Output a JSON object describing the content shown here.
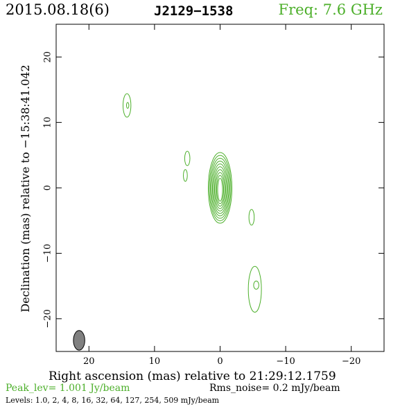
{
  "header": {
    "date": "2015.08.18(6)",
    "source": "J2129−1538",
    "freq": "Freq: 7.6 GHz"
  },
  "colors": {
    "contour": "#4caf2a",
    "beam": "#808080",
    "text": "#000000"
  },
  "chart_data": {
    "type": "contour",
    "xlabel": "Right ascension (mas) relative to 21:29:12.1759",
    "ylabel": "Declination (mas) relative to −15:38:41.042",
    "xlim": [
      25,
      -25
    ],
    "ylim": [
      -25,
      25
    ],
    "x_ticks": [
      20,
      10,
      0,
      -10,
      -20
    ],
    "x_tick_labels": [
      "20",
      "10",
      "0",
      "−10",
      "−20"
    ],
    "y_ticks": [
      20,
      10,
      0,
      -10,
      -20
    ],
    "y_tick_labels": [
      "20",
      "10",
      "0",
      "−10",
      "−20"
    ],
    "peak": "Peak_lev=  1.001 Jy/beam",
    "rms": "Rms_noise=  0.2 mJy/beam",
    "levels_text": "Levels: 1.0,   2,   4,   8,  16,  32,  64, 127, 254, 509 mJy/beam",
    "levels_mJy": [
      1.0,
      2,
      4,
      8,
      16,
      32,
      64,
      127,
      254,
      509
    ],
    "core": {
      "x": 0,
      "y": 0,
      "rx_outer": 1.8,
      "ry_outer": 5.4,
      "n_contours": 10
    },
    "components": [
      {
        "name": "north-blob",
        "x": 14.2,
        "y": 12.6,
        "rx": 0.6,
        "ry": 1.8
      },
      {
        "name": "west-knot-upper",
        "x": 5.0,
        "y": 4.5,
        "rx": 0.4,
        "ry": 1.1
      },
      {
        "name": "west-knot-lower",
        "x": 5.3,
        "y": 1.9,
        "rx": 0.3,
        "ry": 0.9
      },
      {
        "name": "east-small",
        "x": -4.8,
        "y": -4.5,
        "rx": 0.4,
        "ry": 1.2
      },
      {
        "name": "south-east-jet",
        "x": -5.3,
        "y": -15.5,
        "rx": 1.0,
        "ry": 3.5
      }
    ],
    "beam": {
      "x": 21.5,
      "y": -23.3,
      "major": 3.0,
      "minor": 1.1,
      "pa": 0
    }
  }
}
